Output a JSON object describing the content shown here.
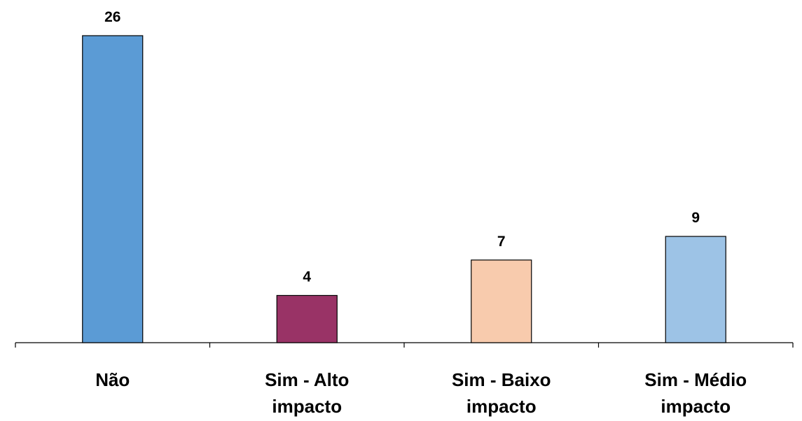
{
  "chart_data": {
    "type": "bar",
    "categories": [
      "Não",
      "Sim - Alto impacto",
      "Sim - Baixo impacto",
      "Sim - Médio impacto"
    ],
    "values": [
      26,
      4,
      7,
      9
    ],
    "colors": [
      "#5b9bd5",
      "#993366",
      "#f8cbad",
      "#9dc3e6"
    ],
    "ylim": [
      0,
      26
    ]
  }
}
